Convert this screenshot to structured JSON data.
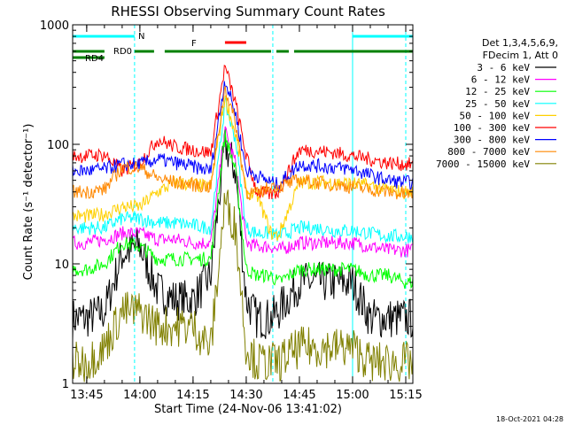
{
  "chart_data": {
    "type": "line",
    "title": "RHESSI Observing Summary Count Rates",
    "xlabel": "Start Time (24-Nov-06 13:41:02)",
    "ylabel": "Count Rate (s⁻¹ detector⁻¹)",
    "yscale": "log",
    "ylim": [
      1,
      1000
    ],
    "xlim": [
      "13:41:02",
      "15:17:00"
    ],
    "x_ticks": [
      "13:45",
      "14:00",
      "14:15",
      "14:30",
      "14:45",
      "15:00",
      "15:15"
    ],
    "y_ticks": [
      "1",
      "10",
      "100",
      "1000"
    ],
    "timestamp": "18-Oct-2021 04:28",
    "legend": {
      "position": "right",
      "header": [
        "Det 1,3,4,5,6,9,",
        "FDecim 1, Att 0"
      ]
    },
    "x_times": [
      "13:41",
      "13:45",
      "13:50",
      "13:55",
      "14:00",
      "14:05",
      "14:10",
      "14:15",
      "14:20",
      "14:24",
      "14:27",
      "14:30",
      "14:33",
      "14:37",
      "14:39",
      "14:45",
      "14:50",
      "14:55",
      "15:00",
      "15:05",
      "15:10",
      "15:15"
    ],
    "series": [
      {
        "name": "3 - 6 keV",
        "color": "#000000",
        "values": [
          3.5,
          3.5,
          4,
          12,
          14,
          6,
          5,
          5,
          8,
          100,
          60,
          5,
          3.5,
          3.5,
          4,
          7,
          7,
          7,
          7,
          3.5,
          3.5,
          3.5
        ]
      },
      {
        "name": "6 - 12 keV",
        "color": "#ff00ff",
        "values": [
          15,
          15,
          16,
          18,
          18,
          16,
          16,
          15,
          15,
          130,
          70,
          15,
          14,
          14,
          13,
          15,
          15,
          15,
          15,
          14,
          13,
          13
        ]
      },
      {
        "name": "12 - 25 keV",
        "color": "#00ff00",
        "values": [
          9,
          9,
          10,
          15,
          14,
          11,
          11,
          11,
          11,
          120,
          60,
          9,
          8,
          8,
          7,
          9,
          9,
          9,
          9,
          8,
          8,
          7
        ]
      },
      {
        "name": "25 - 50 keV",
        "color": "#00ffff",
        "values": [
          20,
          20,
          20,
          24,
          24,
          22,
          22,
          21,
          20,
          220,
          110,
          20,
          18,
          18,
          17,
          20,
          20,
          19,
          19,
          18,
          17,
          17
        ]
      },
      {
        "name": "50 - 100 keV",
        "color": "#ffd000",
        "values": [
          25,
          25,
          26,
          30,
          30,
          40,
          48,
          46,
          44,
          250,
          120,
          40,
          38,
          18,
          17,
          48,
          48,
          48,
          47,
          45,
          42,
          40
        ]
      },
      {
        "name": "100 - 300 keV",
        "color": "#ff0000",
        "values": [
          80,
          80,
          82,
          60,
          70,
          110,
          95,
          90,
          85,
          450,
          220,
          80,
          40,
          38,
          40,
          90,
          88,
          85,
          80,
          75,
          70,
          68
        ]
      },
      {
        "name": "300 - 800 keV",
        "color": "#0000ff",
        "values": [
          60,
          60,
          62,
          68,
          68,
          75,
          70,
          65,
          60,
          350,
          180,
          60,
          55,
          48,
          46,
          68,
          66,
          64,
          62,
          55,
          50,
          48
        ]
      },
      {
        "name": "800 - 7000 keV",
        "color": "#ff8800",
        "values": [
          40,
          40,
          42,
          64,
          64,
          52,
          48,
          46,
          44,
          300,
          150,
          40,
          38,
          45,
          44,
          50,
          48,
          46,
          44,
          42,
          40,
          38
        ]
      },
      {
        "name": "7000 - 15000 keV",
        "color": "#808000",
        "values": [
          1.5,
          1.5,
          2,
          4,
          4,
          3,
          3,
          3,
          2,
          34,
          20,
          2,
          1.5,
          1.5,
          1.5,
          2,
          2,
          2,
          2,
          1.5,
          1.5,
          1.5
        ]
      }
    ],
    "flags": [
      {
        "label": "N",
        "color": "#00ffff"
      },
      {
        "label": "F",
        "color": "#ff0000"
      },
      {
        "label": "RD0",
        "color": "#008000"
      },
      {
        "label": "RD4",
        "color": "#008000"
      }
    ]
  }
}
